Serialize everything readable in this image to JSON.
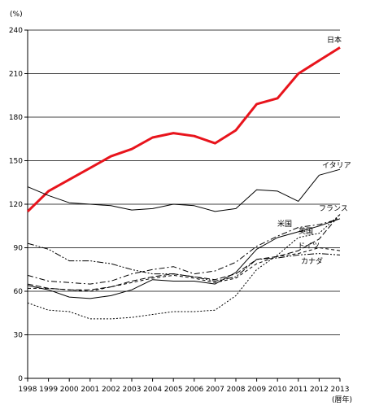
{
  "chart_data": {
    "type": "line",
    "title": "",
    "ylabel": "(%)",
    "xlabel": "(暦年)",
    "ylim": [
      0,
      240
    ],
    "yticks": [
      0,
      30,
      60,
      90,
      120,
      150,
      180,
      210,
      240
    ],
    "grid": true,
    "x": [
      "1998",
      "1999",
      "2000",
      "2001",
      "2002",
      "2003",
      "2004",
      "2005",
      "2006",
      "2007",
      "2008",
      "2009",
      "2010",
      "2011",
      "2012",
      "2013"
    ],
    "series": [
      {
        "name": "日本",
        "color": "#e8141c",
        "width": 3,
        "dash": "",
        "values": [
          115,
          129,
          137,
          145,
          153,
          158,
          166,
          169,
          167,
          162,
          171,
          189,
          193,
          210,
          219,
          228
        ]
      },
      {
        "name": "イタリア",
        "color": "#000000",
        "width": 1,
        "dash": "",
        "values": [
          132,
          126,
          121,
          120,
          119,
          116,
          117,
          120,
          119,
          115,
          117,
          130,
          129,
          122,
          140,
          144
        ]
      },
      {
        "name": "フランス",
        "color": "#000000",
        "width": 1,
        "dash": "7,3",
        "values": [
          65,
          62,
          61,
          61,
          63,
          67,
          70,
          72,
          70,
          68,
          72,
          82,
          84,
          88,
          96,
          113
        ]
      },
      {
        "name": "米国",
        "color": "#000000",
        "width": 1,
        "dash": "",
        "values": [
          64,
          61,
          56,
          55,
          57,
          61,
          68,
          67,
          67,
          65,
          73,
          89,
          97,
          101,
          105,
          110
        ]
      },
      {
        "name": "英国",
        "color": "#000000",
        "width": 1,
        "dash": "7,3,2,3",
        "values": [
          71,
          67,
          66,
          65,
          67,
          72,
          75,
          77,
          72,
          74,
          80,
          91,
          98,
          104,
          106,
          110
        ]
      },
      {
        "name": "ドイツ",
        "color": "#000000",
        "width": 1,
        "dash": "4,3",
        "values": [
          62,
          62,
          61,
          60,
          63,
          66,
          69,
          71,
          69,
          66,
          69,
          79,
          84,
          86,
          90,
          88
        ]
      },
      {
        "name": "カナダ",
        "color": "#000000",
        "width": 1,
        "dash": "8,2,2,2,2,2",
        "values": [
          93,
          89,
          81,
          81,
          79,
          75,
          72,
          72,
          70,
          67,
          70,
          82,
          83,
          85,
          86,
          85
        ]
      },
      {
        "name": "",
        "color": "#000000",
        "width": 1,
        "dash": "2,2",
        "values": [
          52,
          47,
          46,
          41,
          41,
          42,
          44,
          46,
          46,
          47,
          57,
          75,
          85,
          97,
          100,
          113
        ]
      }
    ]
  }
}
